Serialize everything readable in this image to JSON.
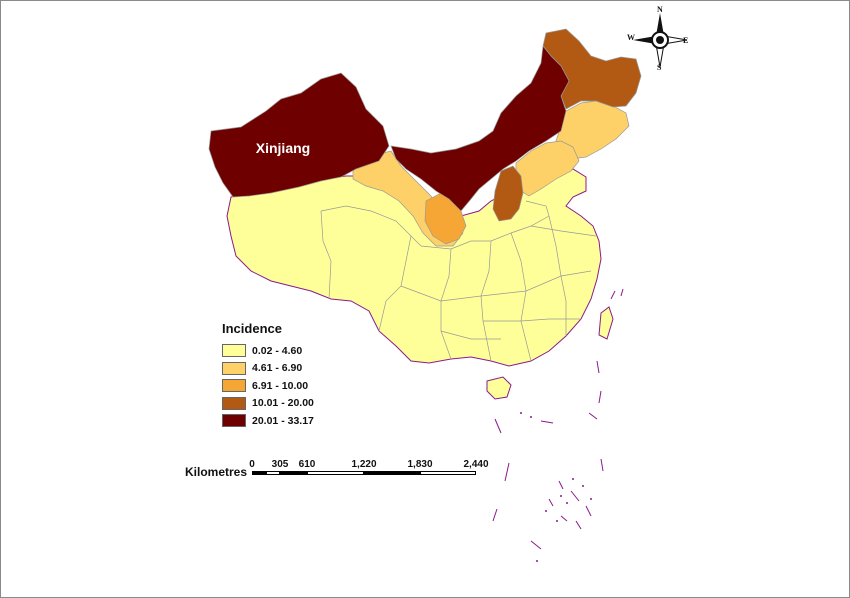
{
  "map": {
    "region_label": "Xinjiang",
    "colors": {
      "class1": "#ffff99",
      "class2": "#fdd168",
      "class3": "#f5a634",
      "class4": "#b25a14",
      "class5": "#6e0000",
      "boundary": "#999999",
      "coast": "#8b1a8b"
    }
  },
  "legend": {
    "title": "Incidence",
    "items": [
      {
        "label": "0.02 - 4.60",
        "color": "#ffff99"
      },
      {
        "label": "4.61 - 6.90",
        "color": "#fdd168"
      },
      {
        "label": "6.91 - 10.00",
        "color": "#f5a634"
      },
      {
        "label": "10.01 - 20.00",
        "color": "#b25a14"
      },
      {
        "label": "20.01 - 33.17",
        "color": "#6e0000"
      }
    ]
  },
  "scale_bar": {
    "title": "Kilometres",
    "ticks": [
      "0",
      "305",
      "610",
      "1,220",
      "1,830",
      "2,440"
    ]
  },
  "north_arrow": {
    "n": "N",
    "s": "S",
    "e": "E",
    "w": "W"
  }
}
